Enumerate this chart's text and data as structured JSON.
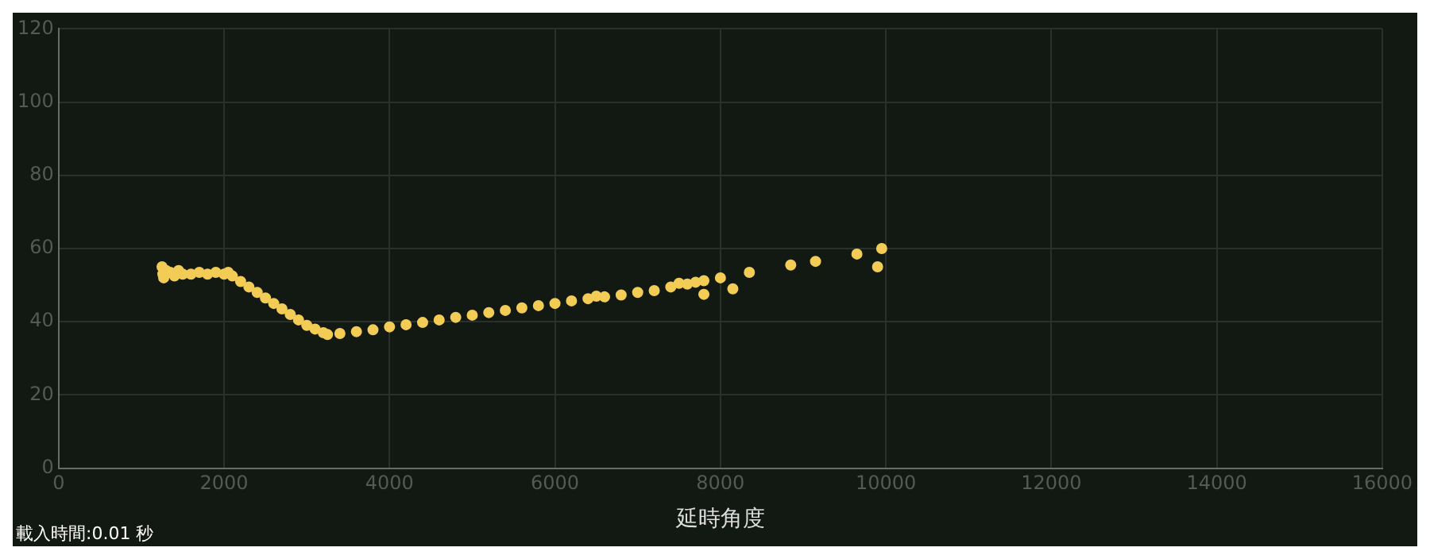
{
  "chart_data": {
    "type": "scatter",
    "xlabel": "延時角度",
    "x": [
      1250,
      1260,
      1270,
      1300,
      1350,
      1400,
      1450,
      1500,
      1600,
      1700,
      1800,
      1900,
      2000,
      2050,
      2100,
      2200,
      2300,
      2400,
      2500,
      2600,
      2700,
      2800,
      2900,
      3000,
      3100,
      3200,
      3250,
      3400,
      3600,
      3800,
      4000,
      4200,
      4400,
      4600,
      4800,
      5000,
      5200,
      5400,
      5600,
      5800,
      6000,
      6200,
      6400,
      6500,
      6600,
      6800,
      7000,
      7200,
      7400,
      7500,
      7600,
      7700,
      7800,
      7800,
      8000,
      8150,
      8350,
      8850,
      9150,
      9650,
      9900,
      9950
    ],
    "series": [
      {
        "color": "#f2cc55",
        "values": [
          55,
          53,
          52,
          54,
          53.5,
          52.5,
          54,
          53,
          53,
          53.5,
          53,
          53.5,
          53,
          53.5,
          52.5,
          51,
          49.5,
          48,
          46.5,
          45,
          43.5,
          42,
          40.5,
          39,
          38,
          37,
          36.5,
          36.8,
          37.3,
          37.8,
          38.6,
          39.2,
          39.8,
          40.5,
          41.2,
          41.8,
          42.5,
          43.1,
          43.8,
          44.4,
          45,
          45.7,
          46.3,
          47,
          46.8,
          47.3,
          48,
          48.5,
          49.5,
          50.5,
          50.3,
          50.8,
          51.2,
          47.5,
          52,
          49,
          53.5,
          55.5,
          56.5,
          58.5,
          55,
          60
        ]
      }
    ],
    "xlim": [
      0,
      16000
    ],
    "xticks": [
      0,
      2000,
      4000,
      6000,
      8000,
      10000,
      12000,
      14000,
      16000
    ],
    "ylim": [
      0,
      120
    ],
    "yticks": [
      0,
      20,
      40,
      60,
      80,
      100,
      120
    ],
    "grid": true,
    "legend": false,
    "marker": "circle",
    "annotations": [
      "載入時間:0.01 秒"
    ]
  }
}
